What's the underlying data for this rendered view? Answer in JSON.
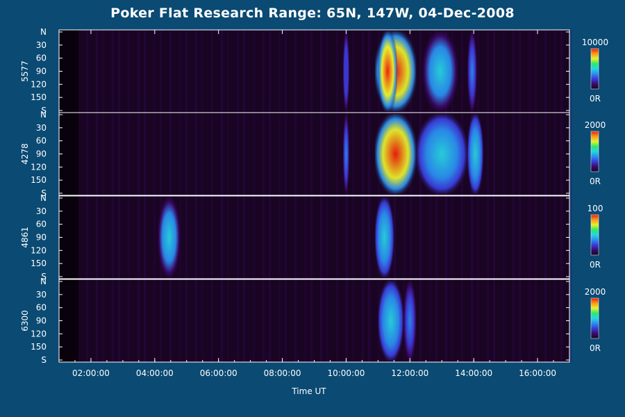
{
  "title": "Poker Flat Research Range: 65N, 147W, 04-Dec-2008",
  "chart_data": {
    "type": "heatmap",
    "title": "Poker Flat Research Range: 65N, 147W, 04-Dec-2008",
    "xlabel": "Time UT",
    "x_ticks": [
      "02:00:00",
      "04:00:00",
      "06:00:00",
      "08:00:00",
      "10:00:00",
      "12:00:00",
      "14:00:00",
      "16:00:00"
    ],
    "xlim": [
      "01:00:00",
      "17:00:00"
    ],
    "y_ticks": [
      "N",
      "30",
      "60",
      "90",
      "120",
      "150",
      "S"
    ],
    "ylim": [
      0,
      180
    ],
    "panels": [
      {
        "wavelength": "5577",
        "colorbar": {
          "max_label": "10000",
          "min_label": "0R"
        },
        "emissions": [
          {
            "start_h": 10.9,
            "end_h": 12.2,
            "intensity": 1.0
          },
          {
            "start_h": 11.0,
            "end_h": 11.6,
            "intensity": 0.95
          },
          {
            "start_h": 12.4,
            "end_h": 13.5,
            "intensity": 0.45
          },
          {
            "start_h": 13.8,
            "end_h": 14.1,
            "intensity": 0.4
          },
          {
            "start_h": 9.9,
            "end_h": 10.1,
            "intensity": 0.25
          }
        ]
      },
      {
        "wavelength": "4278",
        "colorbar": {
          "max_label": "2000",
          "min_label": "0R"
        },
        "emissions": [
          {
            "start_h": 10.9,
            "end_h": 12.2,
            "intensity": 1.0
          },
          {
            "start_h": 12.2,
            "end_h": 13.8,
            "intensity": 0.5
          },
          {
            "start_h": 13.8,
            "end_h": 14.3,
            "intensity": 0.55
          },
          {
            "start_h": 9.9,
            "end_h": 10.1,
            "intensity": 0.35
          }
        ]
      },
      {
        "wavelength": "4861",
        "colorbar": {
          "max_label": "100",
          "min_label": "0R"
        },
        "emissions": [
          {
            "start_h": 4.1,
            "end_h": 4.8,
            "intensity": 0.45
          },
          {
            "start_h": 10.9,
            "end_h": 11.5,
            "intensity": 0.5
          }
        ]
      },
      {
        "wavelength": "6300",
        "colorbar": {
          "max_label": "2000",
          "min_label": "0R"
        },
        "emissions": [
          {
            "start_h": 11.0,
            "end_h": 11.8,
            "intensity": 0.5
          },
          {
            "start_h": 11.8,
            "end_h": 12.2,
            "intensity": 0.35
          }
        ]
      }
    ]
  },
  "colors": {
    "background": "#0a4a73",
    "plot_background": "#1a0424",
    "colormap": [
      "#1a0424",
      "#3b0a6a",
      "#3b3bd9",
      "#2a8ef0",
      "#27d6e0",
      "#2ee86b",
      "#e8f02a",
      "#f59a1e",
      "#f01c0c"
    ]
  }
}
